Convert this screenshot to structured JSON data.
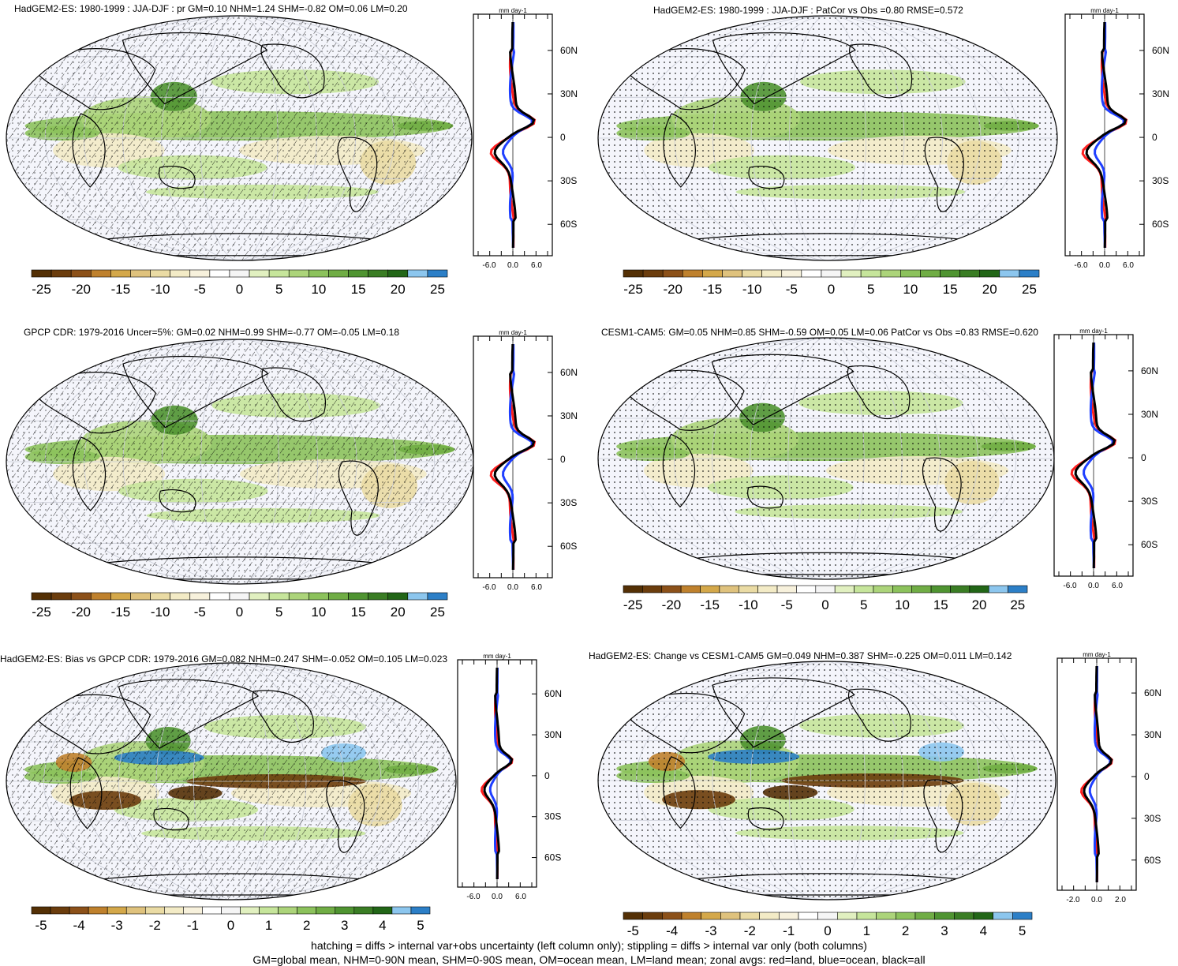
{
  "panels": [
    {
      "title": "HadGEM2-ES: 1980-1999 : JJA-DJF : pr GM=0.10 NHM=1.24 SHM=-0.82 OM=0.06 LM=0.20",
      "cb_labels": [
        "-25",
        "-20",
        "-15",
        "-10",
        "-5",
        "0",
        "5",
        "10",
        "15",
        "20",
        "25"
      ],
      "za_ticks": [
        "-6.0",
        "0.0",
        "6.0"
      ],
      "lat_ticks": [
        "60N",
        "30N",
        "0",
        "30S",
        "60S"
      ],
      "unit": "mm day-1",
      "pattern": "hatch"
    },
    {
      "title": "HadGEM2-ES: 1980-1999 : JJA-DJF : PatCor vs Obs =0.80 RMSE=0.572",
      "cb_labels": [
        "-25",
        "-20",
        "-15",
        "-10",
        "-5",
        "0",
        "5",
        "10",
        "15",
        "20",
        "25"
      ],
      "za_ticks": [
        "-6.0",
        "0.0",
        "6.0"
      ],
      "lat_ticks": [
        "60N",
        "30N",
        "0",
        "30S",
        "60S"
      ],
      "unit": "mm day-1",
      "pattern": "stipple"
    },
    {
      "title": "GPCP CDR: 1979-2016 Uncer=5%: GM=0.02 NHM=0.99 SHM=-0.77 OM=-0.05 LM=0.18",
      "cb_labels": [
        "-25",
        "-20",
        "-15",
        "-10",
        "-5",
        "0",
        "5",
        "10",
        "15",
        "20",
        "25"
      ],
      "za_ticks": [
        "-6.0",
        "0.0",
        "6.0"
      ],
      "lat_ticks": [
        "60N",
        "30N",
        "0",
        "30S",
        "60S"
      ],
      "unit": "mm day-1",
      "pattern": "hatch"
    },
    {
      "title": "CESM1-CAM5: GM=0.05 NHM=0.85 SHM=-0.59 OM=0.05 LM=0.06 PatCor vs Obs =0.83 RMSE=0.620",
      "cb_labels": [
        "-25",
        "-20",
        "-15",
        "-10",
        "-5",
        "0",
        "5",
        "10",
        "15",
        "20",
        "25"
      ],
      "za_ticks": [
        "-6.0",
        "0.0",
        "6.0"
      ],
      "lat_ticks": [
        "60N",
        "30N",
        "0",
        "30S",
        "60S"
      ],
      "unit": "mm day-1",
      "pattern": "stipple"
    },
    {
      "title": "HadGEM2-ES: Bias vs GPCP CDR: 1979-2016 GM=0.082 NHM=0.247 SHM=-0.052 OM=0.105 LM=0.023",
      "cb_labels": [
        "-5",
        "-4",
        "-3",
        "-2",
        "-1",
        "0",
        "1",
        "2",
        "3",
        "4",
        "5"
      ],
      "za_ticks": [
        "-6.0",
        "0.0",
        "6.0"
      ],
      "lat_ticks": [
        "60N",
        "30N",
        "0",
        "30S",
        "60S"
      ],
      "unit": "mm day-1",
      "pattern": "hatch"
    },
    {
      "title": "HadGEM2-ES: Change vs CESM1-CAM5 GM=0.049 NHM=0.387 SHM=-0.225 OM=0.011 LM=0.142",
      "cb_labels": [
        "-5",
        "-4",
        "-3",
        "-2",
        "-1",
        "0",
        "1",
        "2",
        "3",
        "4",
        "5"
      ],
      "za_ticks": [
        "-2.0",
        "0.0",
        "2.0"
      ],
      "lat_ticks": [
        "60N",
        "30N",
        "0",
        "30S",
        "60S"
      ],
      "unit": "mm day-1",
      "pattern": "stipple"
    }
  ],
  "palette": [
    "#543005",
    "#6b3d0d",
    "#8c5119",
    "#bf812d",
    "#d4a84a",
    "#dfc27d",
    "#eadba4",
    "#f3ebc6",
    "#f7f1dc",
    "#ffffff",
    "#f5f5f5",
    "#e1f0c0",
    "#c6e59b",
    "#acd47a",
    "#8cc25c",
    "#70ad45",
    "#4f9431",
    "#3a7d24",
    "#226617",
    "#8cc6ee",
    "#2c7fc7"
  ],
  "line_colors": {
    "land": "#ff1f1f",
    "ocean": "#1f3fff",
    "all": "#000000"
  },
  "footnote": {
    "line1": "hatching = diffs > internal var+obs uncertainty (left column only); stippling = diffs > internal var only (both columns)",
    "line2": "GM=global mean, NHM=0-90N mean, SHM=0-90S mean, OM=ocean mean, LM=land mean; zonal avgs: red=land, blue=ocean, black=all"
  }
}
